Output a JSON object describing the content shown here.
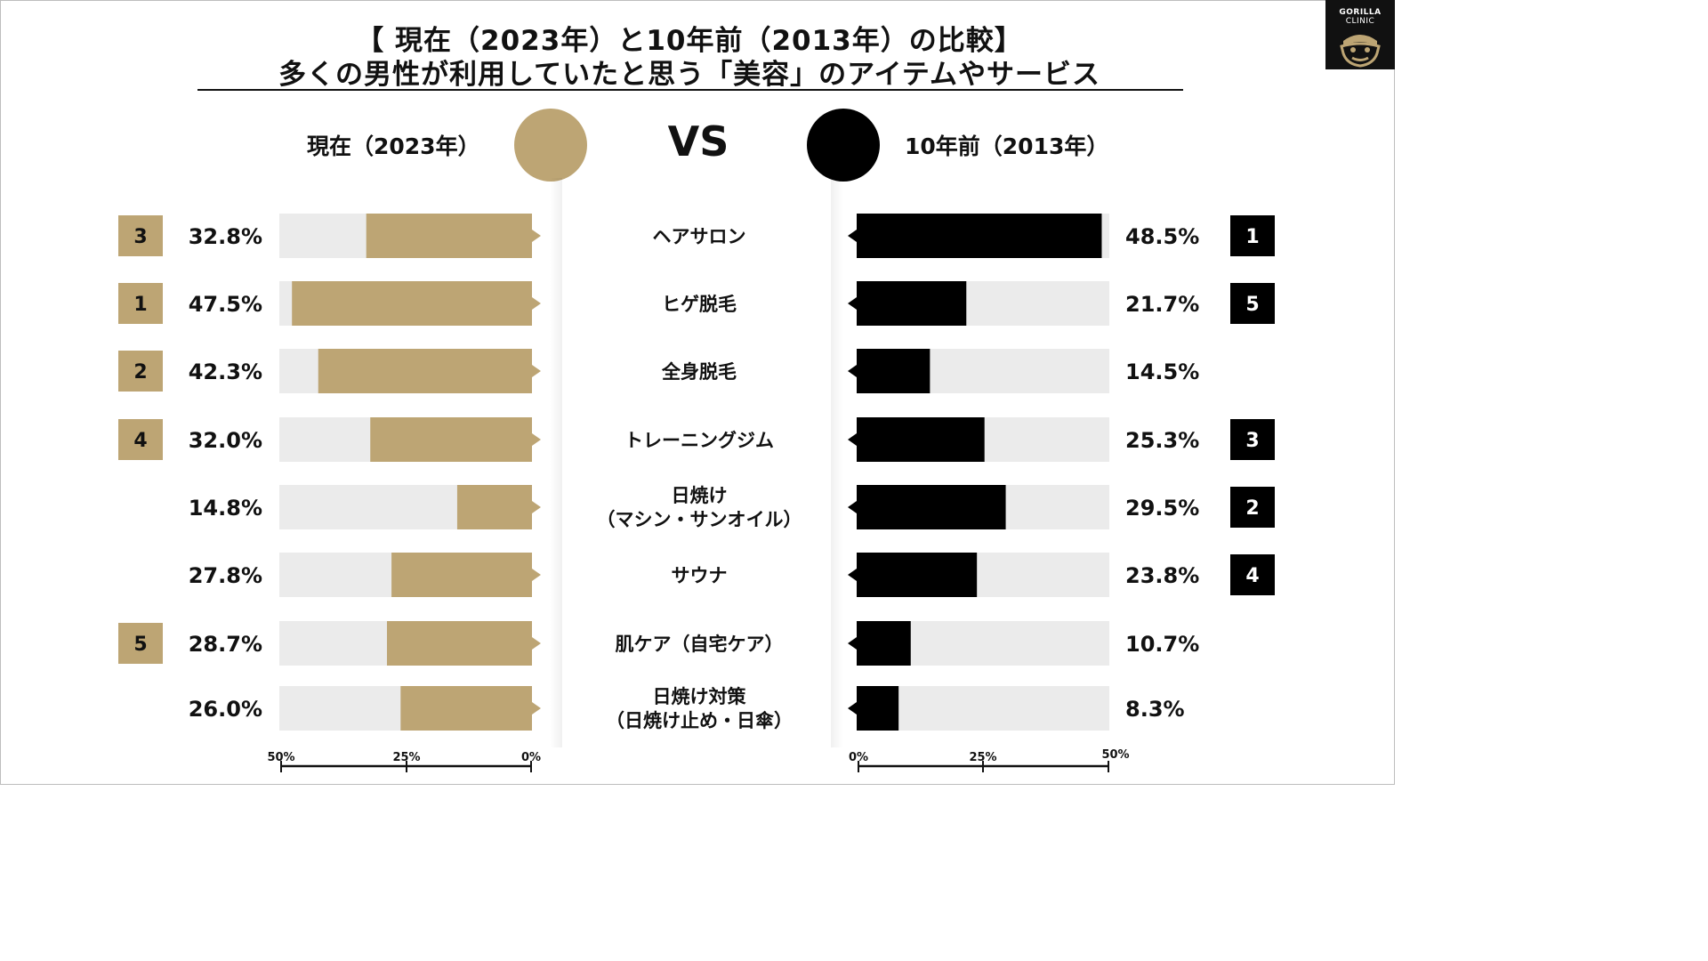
{
  "title": {
    "line1": "【 現在（2023年）と10年前（2013年）の比較】",
    "line2": "多くの男性が利用していたと思う「美容」のアイテムやサービス"
  },
  "logo": {
    "line1": "GORILLA",
    "line2": "CLINIC"
  },
  "legend": {
    "current_label": "現在（2023年）",
    "past_label": "10年前（2013年）",
    "vs": "VS"
  },
  "colors": {
    "current": "#bda574",
    "past": "#000000",
    "track": "#ebebeb",
    "text": "#111111"
  },
  "chart_data": {
    "type": "bar",
    "title": "多くの男性が利用していたと思う「美容」のアイテムやサービス",
    "categories": [
      "ヘアサロン",
      "ヒゲ脱毛",
      "全身脱毛",
      "トレーニングジム",
      "日焼け\n（マシン・サンオイル）",
      "サウナ",
      "肌ケア（自宅ケア）",
      "日焼け対策\n（日焼け止め・日傘）"
    ],
    "series": [
      {
        "name": "現在（2023年）",
        "values": [
          32.8,
          47.5,
          42.3,
          32.0,
          14.8,
          27.8,
          28.7,
          26.0
        ],
        "labels": [
          "32.8%",
          "47.5%",
          "42.3%",
          "32.0%",
          "14.8%",
          "27.8%",
          "28.7%",
          "26.0%"
        ],
        "ranks": [
          "3",
          "1",
          "2",
          "4",
          "",
          "",
          "5",
          ""
        ]
      },
      {
        "name": "10年前（2013年）",
        "values": [
          48.5,
          21.7,
          14.5,
          25.3,
          29.5,
          23.8,
          10.7,
          8.3
        ],
        "labels": [
          "48.5%",
          "21.7%",
          "14.5%",
          "25.3%",
          "29.5%",
          "23.8%",
          "10.7%",
          "8.3%"
        ],
        "ranks": [
          "1",
          "5",
          "",
          "3",
          "2",
          "4",
          "",
          ""
        ]
      }
    ],
    "xlim": [
      0,
      50
    ],
    "left_axis_ticks": [
      "50%",
      "25%",
      "0%"
    ],
    "right_axis_ticks": [
      "0%",
      "25%",
      "50%"
    ]
  }
}
